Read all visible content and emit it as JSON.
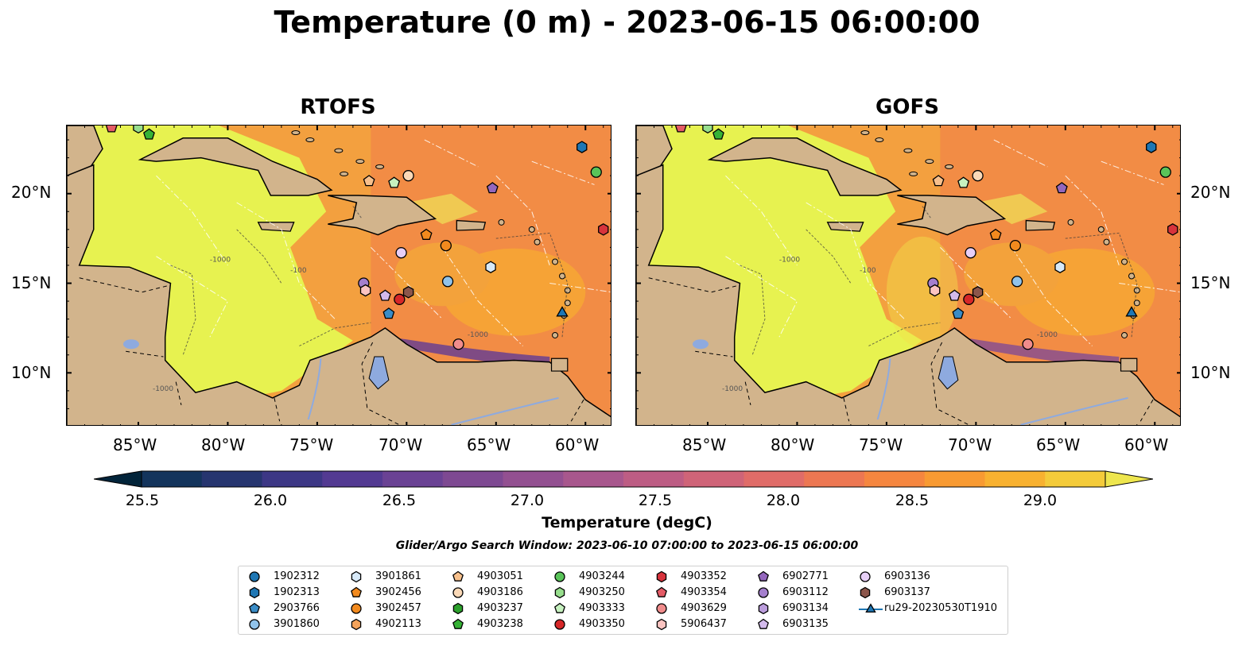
{
  "figure": {
    "title": "Temperature (0 m) - 2023-06-15 06:00:00",
    "panels": [
      {
        "id": "rtofs",
        "title": "RTOFS"
      },
      {
        "id": "gofs",
        "title": "GOFS"
      }
    ],
    "lon_labels": [
      "85°W",
      "80°W",
      "75°W",
      "70°W",
      "65°W",
      "60°W"
    ],
    "lat_labels": [
      "20°N",
      "15°N",
      "10°N"
    ],
    "extent": {
      "lon": [
        -89.0,
        -58.5
      ],
      "lat": [
        7.0,
        23.8
      ]
    },
    "contour_labels": [
      "-100",
      "-1000"
    ]
  },
  "colorbar": {
    "label": "Temperature (degC)",
    "ticks": [
      "25.5",
      "26.0",
      "26.5",
      "27.0",
      "27.5",
      "28.0",
      "28.5",
      "29.0"
    ],
    "range": [
      25.25,
      29.25
    ],
    "extend": "both",
    "colors": [
      "#02243a",
      "#13345c",
      "#26356f",
      "#3c3785",
      "#533a92",
      "#6a4294",
      "#7e4992",
      "#935091",
      "#a8578d",
      "#bd5d84",
      "#cf6478",
      "#e06c68",
      "#ec7752",
      "#f5863f",
      "#f89a32",
      "#f8b130",
      "#f4cb3a",
      "#eee64e"
    ]
  },
  "search_window": "Glider/Argo Search Window: 2023-06-10 07:00:00 to 2023-06-15 06:00:00",
  "legend": [
    {
      "label": "1902312",
      "marker": "circle",
      "color": "#1f77b4"
    },
    {
      "label": "1902313",
      "marker": "hexagon",
      "color": "#1f77b4"
    },
    {
      "label": "2903766",
      "marker": "pentagon",
      "color": "#3a8cc6"
    },
    {
      "label": "3901860",
      "marker": "circle",
      "color": "#91c3ea"
    },
    {
      "label": "3901861",
      "marker": "hexagon",
      "color": "#d7e9f8"
    },
    {
      "label": "3902456",
      "marker": "pentagon",
      "color": "#f28a1e"
    },
    {
      "label": "3902457",
      "marker": "circle",
      "color": "#f28a1e"
    },
    {
      "label": "4902113",
      "marker": "hexagon",
      "color": "#f4a35b"
    },
    {
      "label": "4903051",
      "marker": "pentagon",
      "color": "#f7c08c"
    },
    {
      "label": "4903186",
      "marker": "circle",
      "color": "#fbd9b7"
    },
    {
      "label": "4903237",
      "marker": "hexagon",
      "color": "#2ca02c"
    },
    {
      "label": "4903238",
      "marker": "pentagon",
      "color": "#36b236"
    },
    {
      "label": "4903244",
      "marker": "circle",
      "color": "#59c459"
    },
    {
      "label": "4903250",
      "marker": "hexagon",
      "color": "#97de8d"
    },
    {
      "label": "4903333",
      "marker": "pentagon",
      "color": "#c6f1bf"
    },
    {
      "label": "4903350",
      "marker": "circle",
      "color": "#d62728"
    },
    {
      "label": "4903352",
      "marker": "hexagon",
      "color": "#d7333c"
    },
    {
      "label": "4903354",
      "marker": "pentagon",
      "color": "#e45b66"
    },
    {
      "label": "4903629",
      "marker": "circle",
      "color": "#f08c8c"
    },
    {
      "label": "5906437",
      "marker": "hexagon",
      "color": "#fbc4c1"
    },
    {
      "label": "6902771",
      "marker": "pentagon",
      "color": "#9467bd"
    },
    {
      "label": "6903112",
      "marker": "circle",
      "color": "#a47fcd"
    },
    {
      "label": "6903134",
      "marker": "hexagon",
      "color": "#bb9ddc"
    },
    {
      "label": "6903135",
      "marker": "pentagon",
      "color": "#d3baec"
    },
    {
      "label": "6903136",
      "marker": "circle",
      "color": "#e7cff7"
    },
    {
      "label": "6903137",
      "marker": "hexagon",
      "color": "#8c564b"
    },
    {
      "label": "ru29-20230530T1910",
      "marker": "triangle-line",
      "color": "#1f77b4"
    }
  ],
  "stations": [
    {
      "id": "1902313",
      "lon": -60.2,
      "lat": 22.6
    },
    {
      "id": "4903244",
      "lon": -59.4,
      "lat": 21.2
    },
    {
      "id": "4903352",
      "lon": -59.0,
      "lat": 18.0
    },
    {
      "id": "4903186",
      "lon": -69.9,
      "lat": 21.0
    },
    {
      "id": "4903051",
      "lon": -72.1,
      "lat": 20.7
    },
    {
      "id": "4903333",
      "lon": -70.7,
      "lat": 20.6
    },
    {
      "id": "6902771",
      "lon": -65.2,
      "lat": 20.3
    },
    {
      "id": "3902456",
      "lon": -68.9,
      "lat": 17.7
    },
    {
      "id": "3902457",
      "lon": -67.8,
      "lat": 17.1
    },
    {
      "id": "6903136",
      "lon": -70.3,
      "lat": 16.7
    },
    {
      "id": "3901861",
      "lon": -65.3,
      "lat": 15.9
    },
    {
      "id": "3901860",
      "lon": -67.7,
      "lat": 15.1
    },
    {
      "id": "6903112",
      "lon": -72.4,
      "lat": 15.0
    },
    {
      "id": "5906437",
      "lon": -72.3,
      "lat": 14.6
    },
    {
      "id": "6903135",
      "lon": -71.2,
      "lat": 14.3
    },
    {
      "id": "6903137",
      "lon": -69.9,
      "lat": 14.5
    },
    {
      "id": "4903350",
      "lon": -70.4,
      "lat": 14.1
    },
    {
      "id": "2903766",
      "lon": -71.0,
      "lat": 13.3
    },
    {
      "id": "4903629",
      "lon": -67.1,
      "lat": 11.6
    },
    {
      "id": "ru29-20230530T1910",
      "lon": -61.3,
      "lat": 13.4
    },
    {
      "id": "4903238",
      "lon": -84.4,
      "lat": 23.3
    },
    {
      "id": "4903250",
      "lon": -85.0,
      "lat": 23.7
    },
    {
      "id": "4903354",
      "lon": -86.5,
      "lat": 23.7
    }
  ]
}
